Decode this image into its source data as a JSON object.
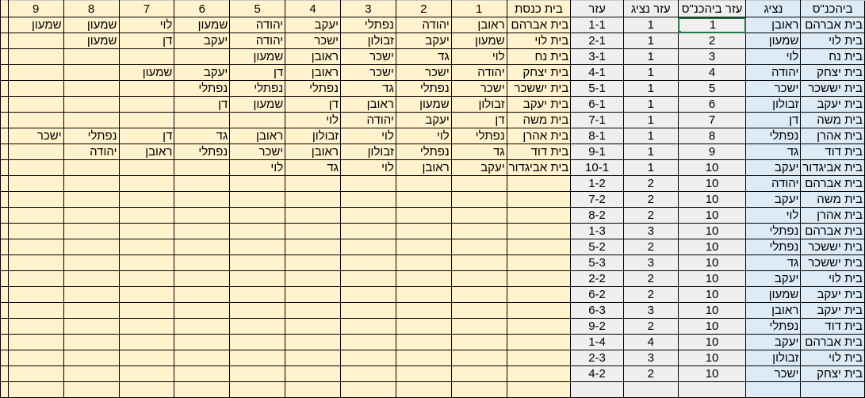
{
  "colors": {
    "yellow": "#fff2cc",
    "grey": "#efefef",
    "blue": "#ddebf7",
    "selection": "#217346"
  },
  "selected_cell": {
    "column": "עזר ביהכנ\"ס",
    "row": 1
  },
  "right_headers": [
    "ביהכנ\"ס",
    "נציג",
    "עזר ביהכנ\"ס",
    "עזר נציג",
    "עזר"
  ],
  "schedule_headers": [
    "בית כנסת",
    "1",
    "2",
    "3",
    "4",
    "5",
    "6",
    "7",
    "8",
    "9"
  ],
  "right_rows": [
    [
      "בית אברהם",
      "ראובן",
      "1",
      "1",
      "1-1"
    ],
    [
      "בית לוי",
      "שמעון",
      "2",
      "1",
      "2-1"
    ],
    [
      "בית נח",
      "לוי",
      "3",
      "1",
      "3-1"
    ],
    [
      "בית יצחק",
      "יהודה",
      "4",
      "1",
      "4-1"
    ],
    [
      "בית יששכר",
      "ישכר",
      "5",
      "1",
      "5-1"
    ],
    [
      "בית יעקב",
      "זבולון",
      "6",
      "1",
      "6-1"
    ],
    [
      "בית משה",
      "דן",
      "7",
      "1",
      "7-1"
    ],
    [
      "בית אהרן",
      "נפתלי",
      "8",
      "1",
      "8-1"
    ],
    [
      "בית דוד",
      "גד",
      "9",
      "1",
      "9-1"
    ],
    [
      "בית אביגדור",
      "יעקב",
      "10",
      "1",
      "10-1"
    ],
    [
      "בית אברהם",
      "יהודה",
      "10",
      "2",
      "1-2"
    ],
    [
      "בית משה",
      "יעקב",
      "10",
      "2",
      "7-2"
    ],
    [
      "בית אהרן",
      "לוי",
      "10",
      "2",
      "8-2"
    ],
    [
      "בית אברהם",
      "נפתלי",
      "10",
      "3",
      "1-3"
    ],
    [
      "בית יששכר",
      "נפתלי",
      "10",
      "2",
      "5-2"
    ],
    [
      "בית יששכר",
      "גד",
      "10",
      "3",
      "5-3"
    ],
    [
      "בית לוי",
      "יעקב",
      "10",
      "2",
      "2-2"
    ],
    [
      "בית יעקב",
      "שמעון",
      "10",
      "2",
      "6-2"
    ],
    [
      "בית יעקב",
      "ראובן",
      "10",
      "3",
      "6-3"
    ],
    [
      "בית דוד",
      "נפתלי",
      "10",
      "2",
      "9-2"
    ],
    [
      "בית אברהם",
      "יעקב",
      "10",
      "4",
      "1-4"
    ],
    [
      "בית לוי",
      "זבולון",
      "10",
      "3",
      "2-3"
    ],
    [
      "בית יצחק",
      "ישכר",
      "10",
      "2",
      "4-2"
    ]
  ],
  "schedule_rows": [
    [
      "בית אברהם",
      "ראובן",
      "יהודה",
      "נפתלי",
      "יעקב",
      "יהודה",
      "שמעון",
      "לוי",
      "שמעון",
      "שמעון"
    ],
    [
      "בית לוי",
      "שמעון",
      "יעקב",
      "זבולון",
      "ישכר",
      "יהודה",
      "יעקב",
      "דן",
      "שמעון",
      ""
    ],
    [
      "בית נח",
      "לוי",
      "גד",
      "ישכר",
      "ראובן",
      "שמעון",
      "",
      "",
      "",
      ""
    ],
    [
      "בית יצחק",
      "יהודה",
      "ישכר",
      "ישכר",
      "ראובן",
      "דן",
      "יעקב",
      "שמעון",
      "",
      ""
    ],
    [
      "בית יששכר",
      "ישכר",
      "נפתלי",
      "גד",
      "נפתלי",
      "נפתלי",
      "נפתלי",
      "",
      "",
      ""
    ],
    [
      "בית יעקב",
      "זבולון",
      "שמעון",
      "ראובן",
      "דן",
      "שמעון",
      "דן",
      "",
      "",
      ""
    ],
    [
      "בית משה",
      "דן",
      "יעקב",
      "יהודה",
      "לוי",
      "",
      "",
      "",
      "",
      ""
    ],
    [
      "בית אהרן",
      "נפתלי",
      "לוי",
      "לוי",
      "זבולון",
      "ראובן",
      "גד",
      "דן",
      "נפתלי",
      "ישכר"
    ],
    [
      "בית דוד",
      "גד",
      "נפתלי",
      "זבולון",
      "ראובן",
      "ישכר",
      "נפתלי",
      "ראובן",
      "יהודה",
      ""
    ],
    [
      "בית אביגדור",
      "יעקב",
      "ראובן",
      "לוי",
      "גד",
      "לוי",
      "",
      "",
      "",
      ""
    ]
  ]
}
